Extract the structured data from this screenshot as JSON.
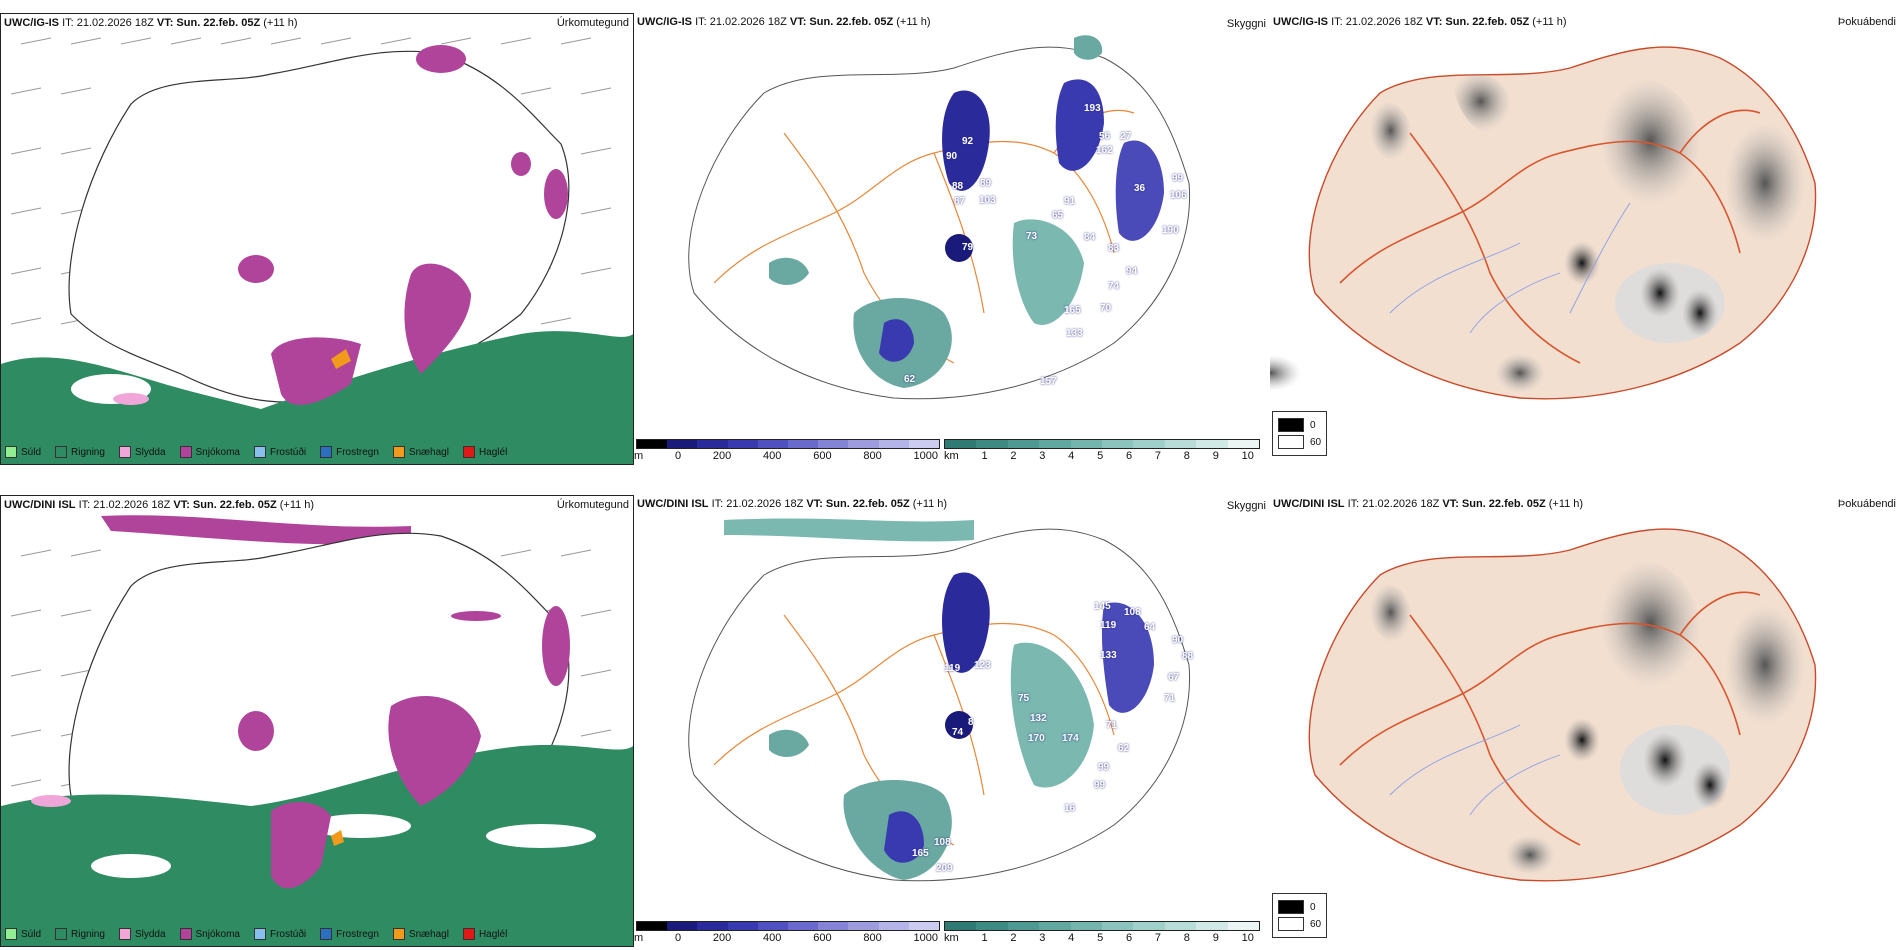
{
  "rows": [
    {
      "model": "UWC/IG-IS",
      "it": "IT: 21.02.2026 18Z",
      "vt_label": "VT:",
      "vt": "Sun. 22.feb. 05Z",
      "lead": "(+11 h)",
      "labels_cloud": [
        "92",
        "90",
        "89",
        "88",
        "103",
        "87",
        "91",
        "65",
        "73",
        "79",
        "84",
        "83",
        "94",
        "74",
        "70",
        "165",
        "133",
        "162",
        "56",
        "27",
        "106",
        "99",
        "157",
        "62",
        "36",
        "190",
        "193"
      ]
    },
    {
      "model": "UWC/DINI ISL",
      "it": "IT: 21.02.2026 18Z",
      "vt_label": "VT:",
      "vt": "Sun. 22.feb. 05Z",
      "lead": "(+11 h)",
      "labels_cloud": [
        "119",
        "123",
        "75",
        "132",
        "170",
        "174",
        "71",
        "62",
        "99",
        "99",
        "16",
        "74",
        "8",
        "119",
        "133",
        "64",
        "90",
        "88",
        "67",
        "71",
        "165",
        "209",
        "108",
        "145",
        "108"
      ]
    }
  ],
  "panel_types": {
    "precip": "Úrkomutegund",
    "cloud": "Skyggni",
    "fog": "Þokuábendi"
  },
  "precip_legend": [
    {
      "label": "Súld",
      "color": "#90ee90"
    },
    {
      "label": "Rigning",
      "color": "#2e8b62"
    },
    {
      "label": "Slydda",
      "color": "#f0a6d8"
    },
    {
      "label": "Snjókoma",
      "color": "#b0449a"
    },
    {
      "label": "Frostúði",
      "color": "#87c0ec"
    },
    {
      "label": "Frostregn",
      "color": "#2a6fc0"
    },
    {
      "label": "Snæhagl",
      "color": "#f29a1c"
    },
    {
      "label": "Haglél",
      "color": "#e01818"
    }
  ],
  "cloud_base_bar": {
    "unit": "m",
    "ticks": [
      "0",
      "200",
      "400",
      "600",
      "800",
      "1000"
    ],
    "colors": [
      "#000000",
      "#1a1a7a",
      "#2a2a9a",
      "#3a3ab0",
      "#5050c0",
      "#6a6acc",
      "#8484d6",
      "#9c9cde",
      "#b4b4e8",
      "#ccccf0"
    ]
  },
  "visibility_bar": {
    "unit": "km",
    "ticks": [
      "1",
      "2",
      "3",
      "4",
      "5",
      "6",
      "7",
      "8",
      "9",
      "10"
    ],
    "colors": [
      "#2f7a72",
      "#3d8a82",
      "#4e9a92",
      "#60a8a0",
      "#74b6ae",
      "#8ac4bc",
      "#a0d0ca",
      "#b8ddd8",
      "#d0e9e6",
      "#ebf5f4"
    ]
  },
  "fog_legend": [
    {
      "label": "0",
      "color": "#000000"
    },
    {
      "label": "60",
      "color": "#ffffff"
    }
  ]
}
